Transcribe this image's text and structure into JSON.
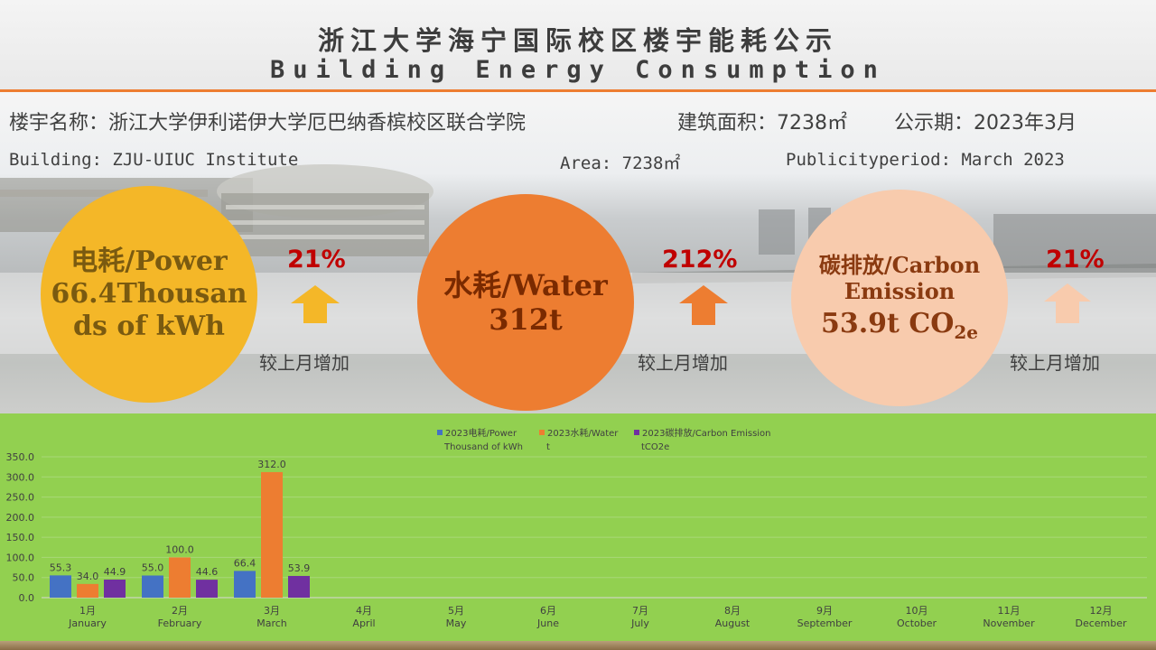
{
  "header": {
    "title_cn": "浙江大学海宁国际校区楼宇能耗公示",
    "title_en": "Building Energy Consumption"
  },
  "info": {
    "building_cn": "楼宇名称：浙江大学伊利诺伊大学厄巴纳香槟校区联合学院",
    "area_cn": "建筑面积：7238㎡",
    "period_cn": "公示期：2023年3月",
    "building_en": "Building: ZJU-UIUC Institute",
    "area_en": "Area: 7238㎡",
    "period_en": "Publicityperiod: March 2023"
  },
  "colors": {
    "accent_line": "#ed7d31",
    "power_circle": "#f4b728",
    "water_circle": "#ed7d31",
    "carbon_circle": "#f8cbad",
    "increase_pct": "#c00000",
    "chart_bg": "#92d050"
  },
  "kpis": {
    "power": {
      "line1": "电耗/Power",
      "line2": "66.4Thousan",
      "line3": "ds of kWh",
      "change": "21%",
      "compare": "较上月增加",
      "arrow_icon": "arrow-up-icon"
    },
    "water": {
      "line1": "水耗/Water",
      "line2": "312t",
      "change": "212%",
      "compare": "较上月增加",
      "arrow_icon": "arrow-up-icon"
    },
    "carbon": {
      "line1": "碳排放/Carbon",
      "line2": "Emission",
      "line3": "53.9t CO",
      "line3_sub": "2e",
      "change": "21%",
      "compare": "较上月增加",
      "arrow_icon": "arrow-up-icon"
    }
  },
  "chart_data": {
    "type": "bar",
    "categories": [
      "1月",
      "2月",
      "3月",
      "4月",
      "5月",
      "6月",
      "7月",
      "8月",
      "9月",
      "10月",
      "11月",
      "12月"
    ],
    "categories_en": [
      "January",
      "February",
      "March",
      "April",
      "May",
      "June",
      "July",
      "August",
      "September",
      "October",
      "November",
      "December"
    ],
    "series": [
      {
        "name": "2023电耗/Power Thousand of kWh",
        "legend_line1": "2023电耗/Power",
        "legend_line2": "Thousand of kWh",
        "color": "#4472c4",
        "values": [
          55.3,
          55.0,
          66.4,
          null,
          null,
          null,
          null,
          null,
          null,
          null,
          null,
          null
        ]
      },
      {
        "name": "2023水耗/Water t",
        "legend_line1": "2023水耗/Water",
        "legend_line2": "t",
        "color": "#ed7d31",
        "values": [
          34.0,
          100.0,
          312.0,
          null,
          null,
          null,
          null,
          null,
          null,
          null,
          null,
          null
        ]
      },
      {
        "name": "2023碳排放/Carbon Emission tCO2e",
        "legend_line1": "2023碳排放/Carbon Emission",
        "legend_line2": "tCO2e",
        "color": "#7030a0",
        "values": [
          44.9,
          44.6,
          53.9,
          null,
          null,
          null,
          null,
          null,
          null,
          null,
          null,
          null
        ]
      }
    ],
    "ylim": [
      0,
      350
    ],
    "yticks": [
      "0.0",
      "50.0",
      "100.0",
      "150.0",
      "200.0",
      "250.0",
      "300.0",
      "350.0"
    ],
    "grid": true,
    "legend_position": "top"
  }
}
